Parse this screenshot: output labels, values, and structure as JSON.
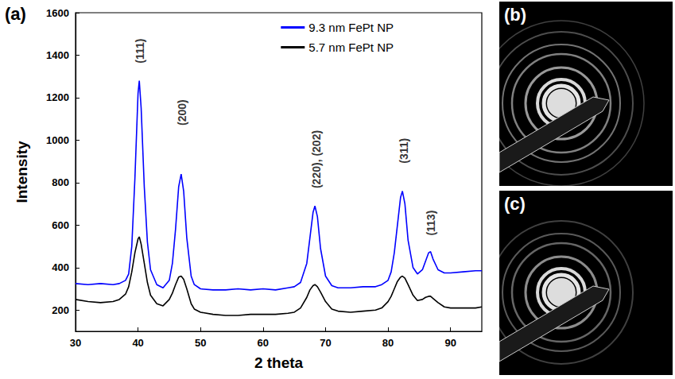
{
  "chart_data": {
    "type": "line",
    "panel_label": "(a)",
    "x_label": "2 theta",
    "y_label": "Intensity",
    "x": [
      30,
      32,
      34,
      36,
      37,
      38,
      38.5,
      39,
      39.5,
      40,
      40.2,
      40.5,
      41,
      41.5,
      42,
      43,
      44,
      45,
      45.5,
      46,
      46.5,
      46.9,
      47.3,
      47.8,
      48.5,
      49,
      50,
      52,
      54,
      56,
      58,
      60,
      62,
      64,
      65,
      66,
      67,
      67.5,
      68,
      68.3,
      68.7,
      69.2,
      70,
      71,
      72,
      74,
      76,
      78,
      79,
      80,
      80.5,
      81,
      81.5,
      82,
      82.3,
      82.7,
      83.2,
      84,
      84.7,
      85.5,
      86,
      86.5,
      86.8,
      87.2,
      88,
      89,
      90,
      92,
      94,
      95
    ],
    "series": [
      {
        "name": "9.3 nm FePt NP",
        "color": "#0000ff",
        "values": [
          325,
          320,
          325,
          320,
          325,
          340,
          370,
          500,
          820,
          1220,
          1280,
          1150,
          780,
          520,
          390,
          320,
          305,
          340,
          420,
          580,
          780,
          840,
          760,
          540,
          360,
          320,
          300,
          295,
          295,
          300,
          295,
          300,
          295,
          305,
          310,
          330,
          420,
          540,
          660,
          690,
          640,
          490,
          360,
          315,
          305,
          305,
          310,
          310,
          320,
          340,
          380,
          470,
          600,
          730,
          760,
          700,
          530,
          400,
          370,
          390,
          430,
          470,
          475,
          440,
          390,
          375,
          375,
          380,
          385,
          385
        ]
      },
      {
        "name": "5.7 nm FePt NP",
        "color": "#000000",
        "values": [
          250,
          240,
          235,
          240,
          250,
          275,
          310,
          380,
          470,
          535,
          545,
          510,
          420,
          330,
          270,
          230,
          220,
          250,
          280,
          320,
          355,
          360,
          345,
          300,
          230,
          205,
          190,
          180,
          175,
          175,
          180,
          180,
          180,
          185,
          190,
          210,
          260,
          295,
          315,
          320,
          310,
          285,
          240,
          205,
          195,
          190,
          195,
          200,
          210,
          240,
          265,
          300,
          335,
          355,
          360,
          350,
          320,
          270,
          245,
          250,
          260,
          265,
          265,
          255,
          235,
          215,
          210,
          210,
          210,
          215
        ]
      }
    ],
    "annotations": [
      {
        "text": "(111)",
        "x": 40.3,
        "y": 1420
      },
      {
        "text": "(200)",
        "x": 47.1,
        "y": 1130
      },
      {
        "text": "(220), (202)",
        "x": 68.5,
        "y": 910
      },
      {
        "text": "(311)",
        "x": 82.5,
        "y": 950
      },
      {
        "text": "(113)",
        "x": 86.9,
        "y": 610
      }
    ],
    "xlim": [
      30,
      95
    ],
    "xticks": [
      30,
      40,
      50,
      60,
      70,
      80,
      90
    ],
    "ylim": [
      100,
      1600
    ],
    "yticks": [
      200,
      400,
      600,
      800,
      1000,
      1200,
      1400,
      1600
    ],
    "grid": false,
    "legend": "top-right"
  },
  "images": [
    {
      "label": "(b)"
    },
    {
      "label": "(c)"
    }
  ]
}
